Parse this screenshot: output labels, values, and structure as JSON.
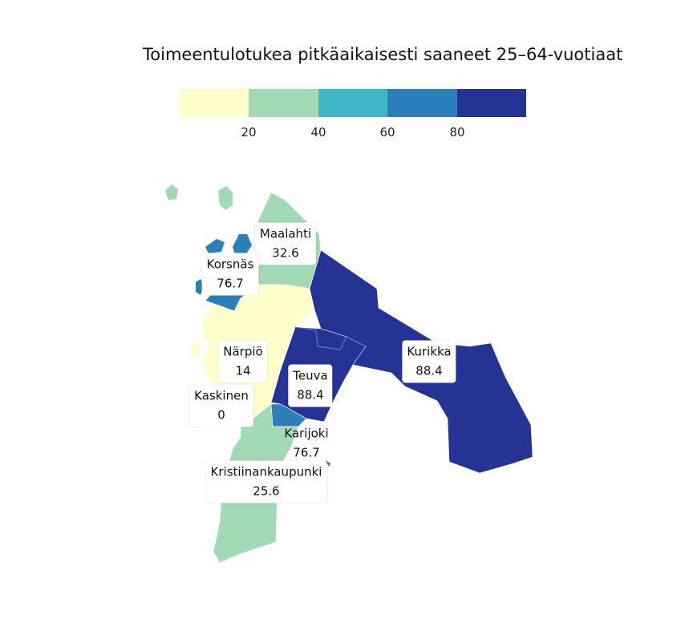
{
  "title": "Toimeentulotukea pitkäaikaisesti saaneet 25–64-vuotiaat",
  "legend": {
    "colors": [
      "#ffffcc",
      "#a1dab4",
      "#41b6c4",
      "#2c7fb8",
      "#253494"
    ],
    "ticks": [
      "20",
      "40",
      "60",
      "80"
    ]
  },
  "regions": [
    {
      "name": "Maalahti",
      "value": "32.6",
      "color": "#a1dab4"
    },
    {
      "name": "Korsnäs",
      "value": "76.7",
      "color": "#2c7fb8"
    },
    {
      "name": "Närpiö",
      "value": "14",
      "color": "#ffffcc"
    },
    {
      "name": "Kaskinen",
      "value": "0",
      "color": "#ffffcc"
    },
    {
      "name": "Teuva",
      "value": "88.4",
      "color": "#253494"
    },
    {
      "name": "Kurikka",
      "value": "88.4",
      "color": "#253494"
    },
    {
      "name": "Karijoki",
      "value": "76.7",
      "color": "#2c7fb8"
    },
    {
      "name": "Kristiinankaupunki",
      "value": "25.6",
      "color": "#a1dab4"
    }
  ]
}
